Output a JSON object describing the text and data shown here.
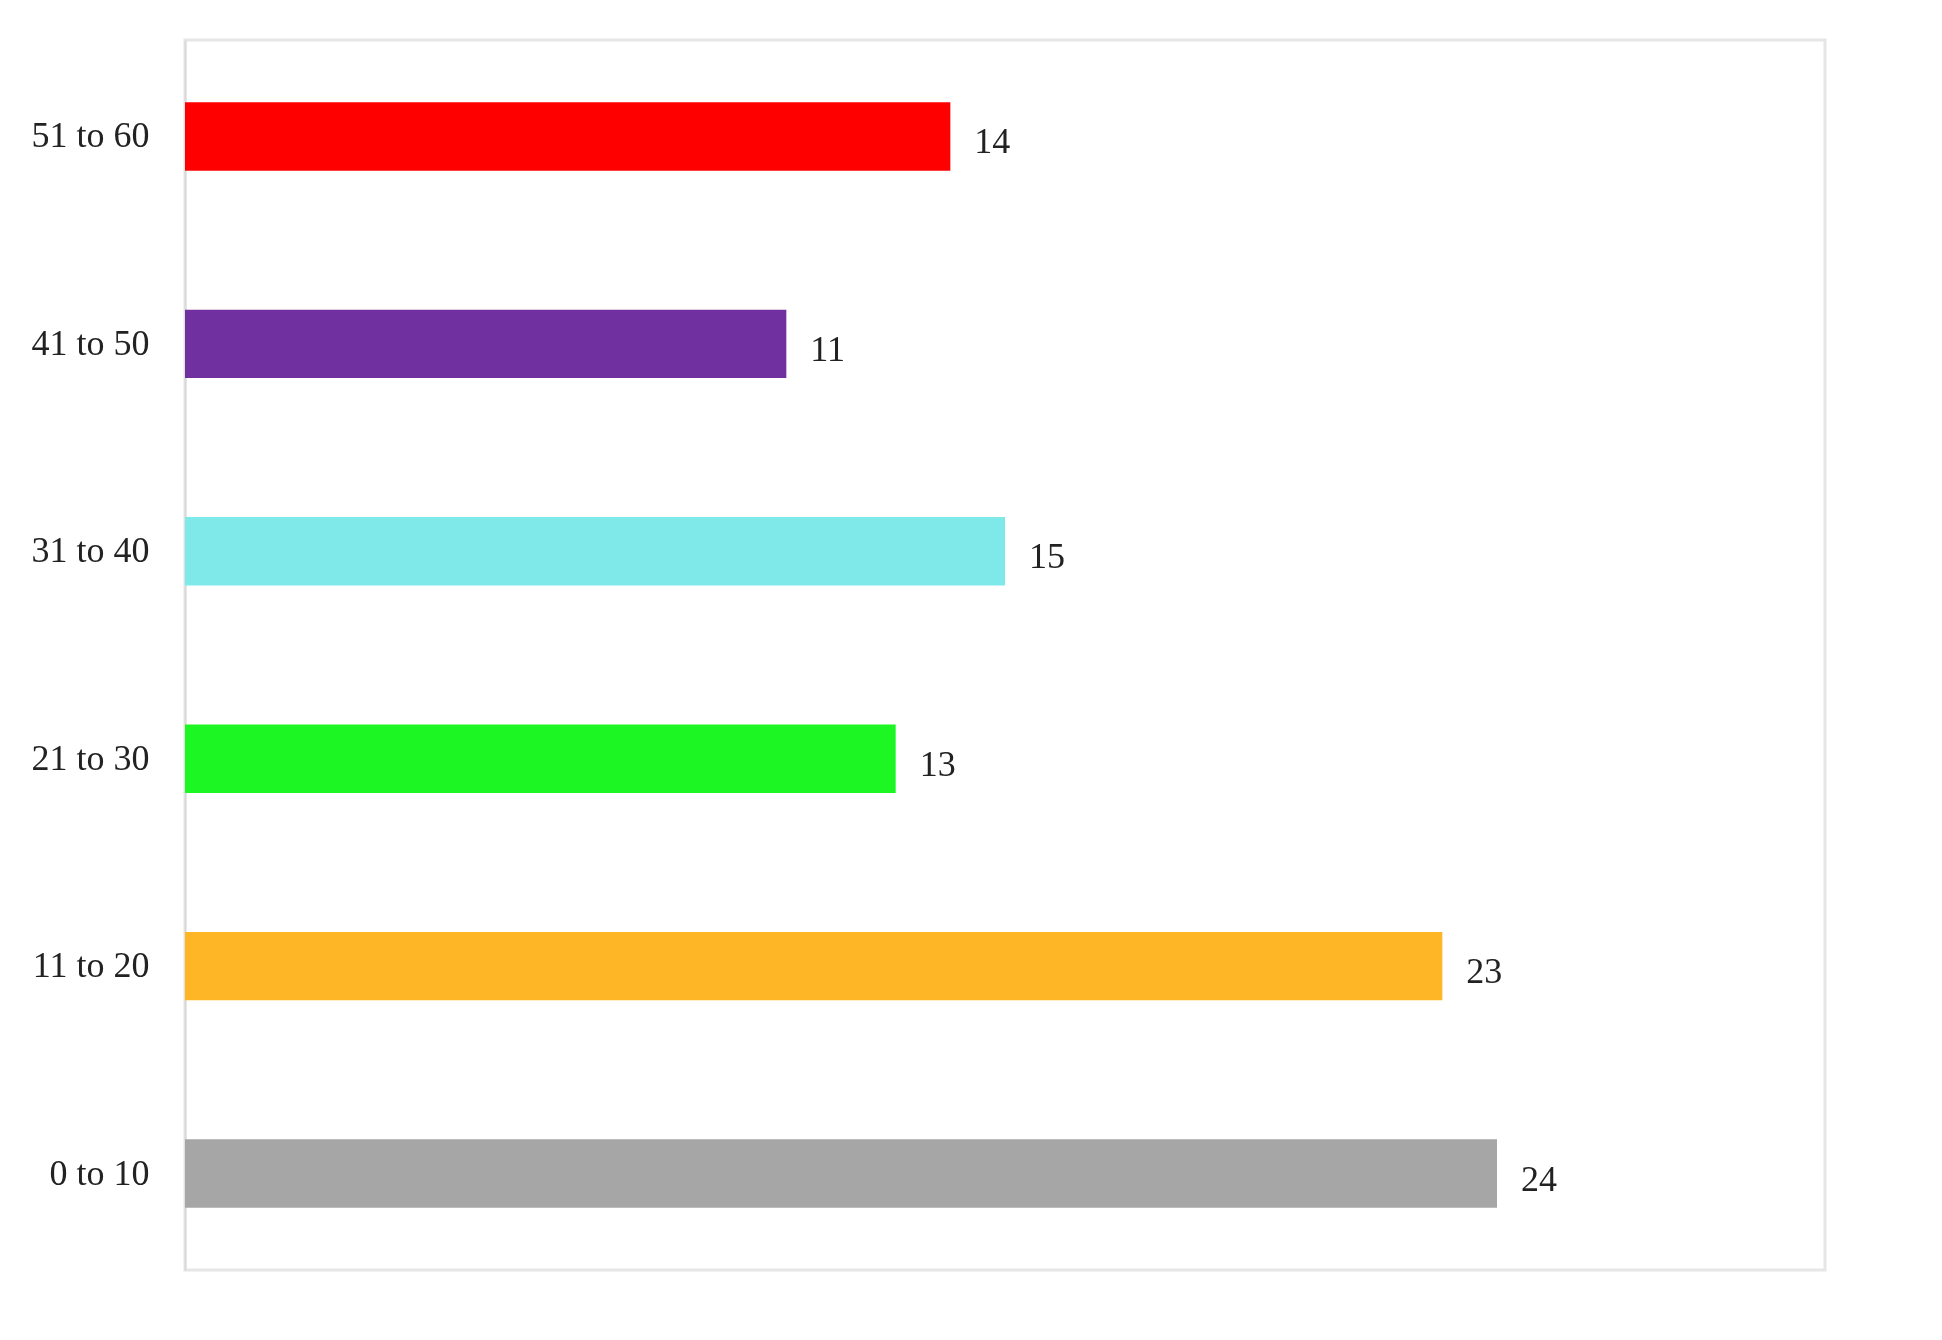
{
  "chart_data": {
    "type": "bar",
    "orientation": "horizontal",
    "categories": [
      "51 to 60",
      "41 to 50",
      "31 to 40",
      "21 to 30",
      "11 to 20",
      "0 to 10"
    ],
    "values": [
      14,
      11,
      15,
      13,
      23,
      24
    ],
    "colors": [
      "#ff0000",
      "#7030a0",
      "#7fe9e9",
      "#1cf723",
      "#feb626",
      "#a6a6a6"
    ],
    "xlim": [
      0,
      30
    ],
    "data_labels": true,
    "grid": false,
    "tick_labels": "y"
  }
}
